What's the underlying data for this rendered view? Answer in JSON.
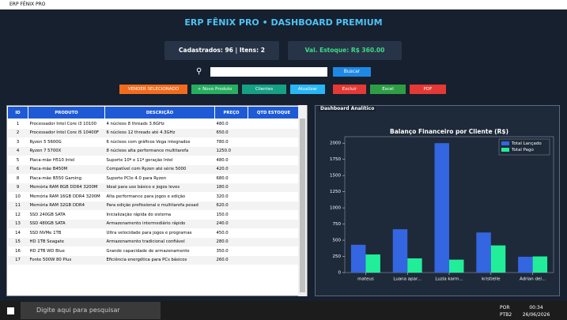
{
  "window_title": "ERP FÊNIX PRO",
  "header": {
    "title": "ERP FÊNIX PRO • DASHBOARD PREMIUM",
    "stats": [
      "Cadastrados: 96 | Itens: 2",
      "Val. Estoque: R$ 360.00"
    ]
  },
  "search": {
    "button": "Buscar"
  },
  "toolbar": [
    "VENDER SELECIONADO",
    "+ Novo Produto",
    "Clientes",
    "Atualizar",
    "Excluir",
    "Excel",
    "PDF"
  ],
  "table": {
    "columns": [
      "ID",
      "PRODUTO",
      "DESCRIÇÃO",
      "PREÇO",
      "QTD ESTOQUE"
    ],
    "rows": [
      [
        "1",
        "Processador Intel Core i3 10100",
        "4 núcleos 8 threads 3.6GHz",
        "480.0"
      ],
      [
        "2",
        "Processador Intel Core i5 10400F",
        "6 núcleos 12 threads até 4.3GHz",
        "650.0"
      ],
      [
        "3",
        "Ryzen 5 5600G",
        "6 núcleos com gráficos Vega integrados",
        "780.0"
      ],
      [
        "4",
        "Ryzen 7 5700X",
        "8 núcleos alta performance multitarefa",
        "1250.0"
      ],
      [
        "5",
        "Placa-mãe H510 Intel",
        "Suporte 10ª e 11ª geração Intel",
        "480.0"
      ],
      [
        "6",
        "Placa-mãe B450M",
        "Compatível com Ryzen até série 5000",
        "420.0"
      ],
      [
        "8",
        "Placa-mãe B550 Gaming",
        "Suporte PCIe 4.0 para Ryzen",
        "680.0"
      ],
      [
        "9",
        "Memória RAM 8GB DDR4 3200M",
        "Ideal para uso básico e jogos leves",
        "180.0"
      ],
      [
        "10",
        "Memória RAM 16GB DDR4 3200M",
        "Alta performance para jogos e edição",
        "320.0"
      ],
      [
        "11",
        "Memória RAM 32GB DDR4",
        "Para edição profissional e multitarefa pesad",
        "620.0"
      ],
      [
        "12",
        "SSD 240GB SATA",
        "Inicialização rápida do sistema",
        "150.0"
      ],
      [
        "13",
        "SSD 480GB SATA",
        "Armazenamento intermediário rápido",
        "240.0"
      ],
      [
        "14",
        "SSD NVMe 1TB",
        "Ultra velocidade para jogos e programas",
        "450.0"
      ],
      [
        "15",
        "HD 1TB Seagate",
        "Armazenamento tradicional confiável",
        "280.0"
      ],
      [
        "16",
        "HD 2TB WD Blue",
        "Grande capacidade de armazenamento",
        "350.0"
      ],
      [
        "17",
        "Fonte 500W 80 Plus",
        "Eficiência energética para PCs básicos",
        "260.0"
      ]
    ]
  },
  "panel_title": "Dashboard Analítico",
  "chart_data": {
    "type": "bar",
    "title": "Balanço Financeiro por Cliente (R$)",
    "categories": [
      "mateus",
      "Luana apar...",
      "Luzia karm...",
      "kristielle",
      "Adrian del..."
    ],
    "series": [
      {
        "name": "Total Lançado",
        "color": "#3366e0",
        "values": [
          430,
          670,
          2000,
          620,
          245
        ]
      },
      {
        "name": "Total Pago",
        "color": "#22ee99",
        "values": [
          280,
          220,
          200,
          420,
          250
        ]
      }
    ],
    "ylim": [
      0,
      2100
    ],
    "yticks": [
      0,
      250,
      500,
      750,
      1000,
      1250,
      1500,
      1750,
      2000
    ],
    "legend": "upper right"
  },
  "taskbar": {
    "search": "Digite aqui para pesquisar",
    "language": [
      "POR",
      "PTB2"
    ],
    "time": "00:34",
    "date": "26/06/2026"
  }
}
